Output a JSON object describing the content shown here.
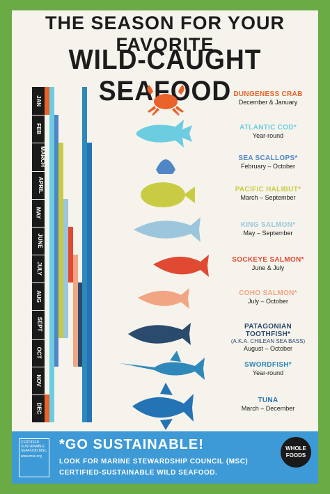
{
  "title": {
    "line1": "THE SEASON FOR YOUR FAVORITE",
    "line2": "WILD-CAUGHT SEAFOOD"
  },
  "months": [
    "JAN",
    "FEB",
    "MARCH",
    "APRIL",
    "MAY",
    "JUNE",
    "JULY",
    "AUG",
    "SEPT",
    "OCT",
    "NOV",
    "DEC"
  ],
  "species": [
    {
      "name": "DUNGENESS CRAB",
      "sub": "",
      "dates": "December & January",
      "color": "#e9622a",
      "icon": "crab-icon",
      "start_month": 12,
      "end_month": 1
    },
    {
      "name": "ATLANTIC COD*",
      "sub": "",
      "dates": "Year-round",
      "color": "#6ccde0",
      "icon": "cod-icon",
      "start_month": 1,
      "end_month": 12
    },
    {
      "name": "SEA SCALLOPS*",
      "sub": "",
      "dates": "February – October",
      "color": "#4f86c6",
      "icon": "scallop-icon",
      "start_month": 2,
      "end_month": 10
    },
    {
      "name": "PACIFIC HALIBUT*",
      "sub": "",
      "dates": "March – September",
      "color": "#c9cc43",
      "icon": "halibut-icon",
      "start_month": 3,
      "end_month": 9
    },
    {
      "name": "KING SALMON*",
      "sub": "",
      "dates": "May – September",
      "color": "#9cc6dc",
      "icon": "king-salmon-icon",
      "start_month": 5,
      "end_month": 9
    },
    {
      "name": "SOCKEYE SALMON*",
      "sub": "",
      "dates": "June & July",
      "color": "#e04a33",
      "icon": "sockeye-salmon-icon",
      "start_month": 6,
      "end_month": 7
    },
    {
      "name": "COHO SALMON*",
      "sub": "",
      "dates": "July – October",
      "color": "#f2a582",
      "icon": "coho-salmon-icon",
      "start_month": 7,
      "end_month": 10
    },
    {
      "name": "PATAGONIAN TOOTHFISH*",
      "sub": "(A.K.A. CHILEAN SEA BASS)",
      "dates": "August – October",
      "color": "#2a4a6e",
      "icon": "toothfish-icon",
      "start_month": 8,
      "end_month": 10
    },
    {
      "name": "SWORDFISH*",
      "sub": "",
      "dates": "Year-round",
      "color": "#2e88b9",
      "icon": "swordfish-icon",
      "start_month": 1,
      "end_month": 12
    },
    {
      "name": "TUNA",
      "sub": "",
      "dates": "March – December",
      "color": "#2473b5",
      "icon": "tuna-icon",
      "start_month": 3,
      "end_month": 12
    }
  ],
  "footer": {
    "headline": "*GO SUSTAINABLE!",
    "line1": "LOOK FOR MARINE STEWARDSHIP COUNCIL (MSC)",
    "line2": "CERTIFIED-SUSTAINABLE WILD SEAFOOD.",
    "msc_badge": "CERTIFIED SUSTAINABLE SEAFOOD MSC",
    "msc_url": "www.msc.org",
    "brand": "WHOLE FOODS"
  },
  "colors": {
    "background": "#6aab45",
    "card": "#f6f3ec",
    "footer": "#3d9ad6"
  }
}
